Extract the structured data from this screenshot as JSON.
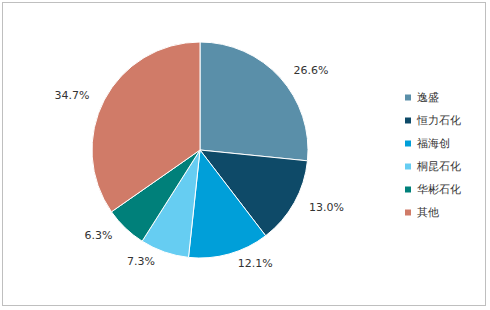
{
  "chart_data": {
    "type": "pie",
    "categories": [
      "逸盛",
      "恒力石化",
      "福海创",
      "桐昆石化",
      "华彬石化",
      "其他"
    ],
    "values": [
      26.6,
      13.0,
      12.1,
      7.3,
      6.3,
      34.7
    ],
    "value_labels": [
      "26.6%",
      "13.0%",
      "12.1%",
      "7.3%",
      "6.3%",
      "34.7%"
    ],
    "colors": [
      "#5a8fa9",
      "#0e4a68",
      "#009fd9",
      "#66cdf2",
      "#00807a",
      "#d07b68"
    ],
    "data_labels": true,
    "legend": "right"
  }
}
